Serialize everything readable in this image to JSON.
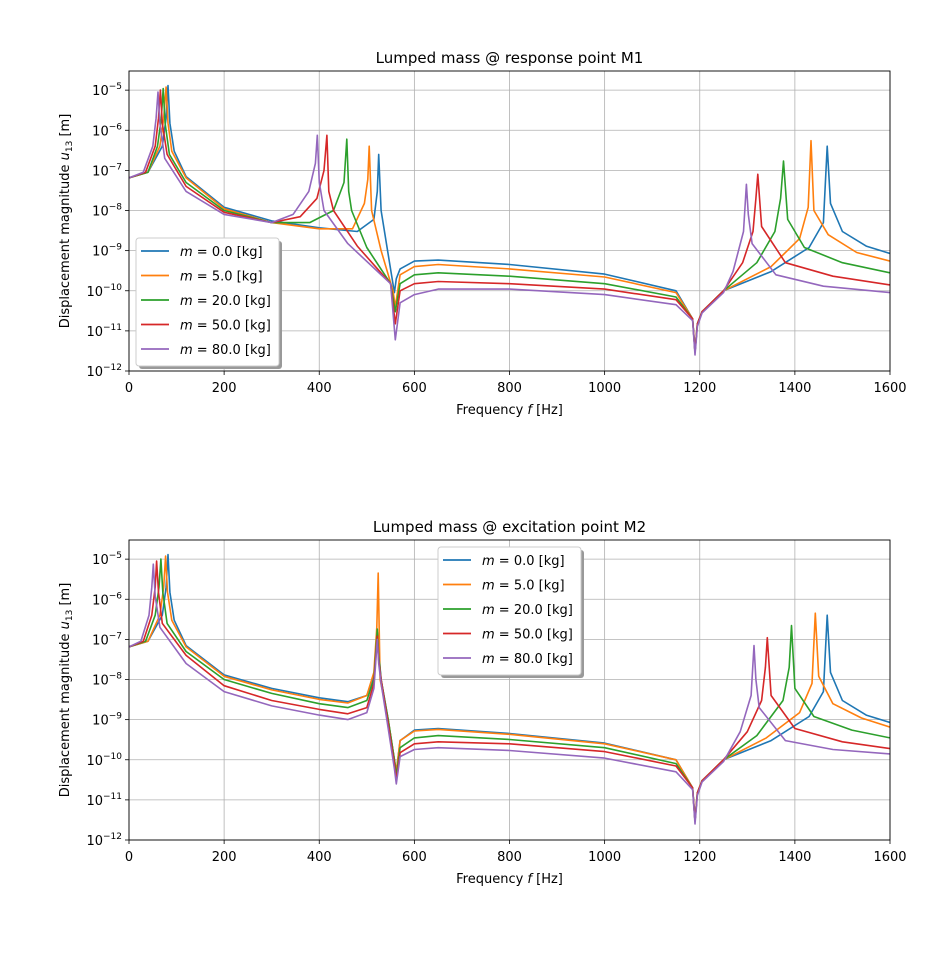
{
  "chart_data": [
    {
      "type": "line",
      "title": "Lumped mass @ response point M1",
      "xlabel": "Frequency f [Hz]",
      "ylabel": "Displacement magnitude u13 [m]",
      "xlim": [
        0,
        1600
      ],
      "ylim": [
        1e-12,
        3e-05
      ],
      "yscale": "log",
      "grid": true,
      "legend": "center-left",
      "xticks": [
        "0",
        "200",
        "400",
        "600",
        "800",
        "1000",
        "1200",
        "1400",
        "1600"
      ],
      "yticks": [
        -12,
        -11,
        -10,
        -9,
        -8,
        -7,
        -6,
        -5
      ],
      "series": [
        {
          "name": "m = 0.0 [kg]",
          "color": "#1f77b4",
          "x": [
            0,
            40,
            70,
            78,
            82,
            86,
            95,
            120,
            200,
            300,
            400,
            480,
            515,
            522,
            525,
            530,
            545,
            558,
            562,
            570,
            600,
            650,
            800,
            1000,
            1150,
            1185,
            1190,
            1195,
            1205,
            1250,
            1350,
            1430,
            1460,
            1468,
            1475,
            1500,
            1550,
            1600
          ],
          "y": [
            6.5e-08,
            9e-08,
            4e-07,
            2e-06,
            1.3e-05,
            1.5e-06,
            3e-07,
            7e-08,
            1.2e-08,
            5.5e-09,
            3.7e-09,
            3e-09,
            6e-09,
            3e-08,
            2.5e-07,
            1e-08,
            8e-10,
            9e-11,
            2e-10,
            3.5e-10,
            5.5e-10,
            5.8e-10,
            4.5e-10,
            2.6e-10,
            1e-10,
            2e-11,
            3e-12,
            1.5e-11,
            3e-11,
            1e-10,
            3e-10,
            1.2e-09,
            5e-09,
            4e-07,
            1.5e-08,
            3e-09,
            1.3e-09,
            8.5e-10
          ]
        },
        {
          "name": "m = 5.0 [kg]",
          "color": "#ff7f0e",
          "x": [
            0,
            40,
            65,
            73,
            78,
            82,
            90,
            120,
            200,
            300,
            400,
            470,
            495,
            502,
            505,
            510,
            530,
            555,
            560,
            570,
            600,
            650,
            800,
            1000,
            1150,
            1185,
            1190,
            1195,
            1205,
            1250,
            1350,
            1410,
            1428,
            1434,
            1440,
            1470,
            1530,
            1600
          ],
          "y": [
            6.5e-08,
            9e-08,
            4e-07,
            2e-06,
            1.2e-05,
            1.5e-06,
            3e-07,
            6.5e-08,
            1.1e-08,
            5e-09,
            3.5e-09,
            3.5e-09,
            1.5e-08,
            6e-08,
            4e-07,
            1e-08,
            1e-09,
            1e-10,
            4e-11,
            2.5e-10,
            4e-10,
            4.5e-10,
            3.5e-10,
            2.2e-10,
            9e-11,
            2e-11,
            3e-12,
            1.5e-11,
            3e-11,
            1e-10,
            4e-10,
            2e-09,
            1.2e-08,
            5.5e-07,
            1e-08,
            2.5e-09,
            9e-10,
            5.5e-10
          ]
        },
        {
          "name": "m = 20.0 [kg]",
          "color": "#2ca02c",
          "x": [
            0,
            40,
            60,
            68,
            72,
            76,
            85,
            120,
            200,
            300,
            380,
            430,
            452,
            458,
            462,
            468,
            500,
            550,
            560,
            570,
            600,
            650,
            800,
            1000,
            1150,
            1185,
            1190,
            1195,
            1205,
            1250,
            1320,
            1358,
            1370,
            1376,
            1385,
            1420,
            1500,
            1600
          ],
          "y": [
            6.5e-08,
            9e-08,
            4e-07,
            2e-06,
            1.1e-05,
            1.5e-06,
            2.5e-07,
            5e-08,
            1e-08,
            5e-09,
            5e-09,
            1e-08,
            5e-08,
            6e-07,
            3e-08,
            1e-08,
            1.2e-09,
            1.5e-10,
            3e-11,
            1.5e-10,
            2.5e-10,
            2.8e-10,
            2.3e-10,
            1.5e-10,
            7e-11,
            2e-11,
            3e-12,
            1.5e-11,
            3e-11,
            1e-10,
            5e-10,
            3e-09,
            2e-08,
            1.7e-07,
            6e-09,
            1.2e-09,
            5e-10,
            2.8e-10
          ]
        },
        {
          "name": "m = 50.0 [kg]",
          "color": "#d62728",
          "x": [
            0,
            35,
            55,
            62,
            66,
            70,
            80,
            120,
            200,
            300,
            360,
            395,
            410,
            416,
            420,
            430,
            480,
            550,
            560,
            570,
            600,
            650,
            800,
            1000,
            1150,
            1185,
            1190,
            1195,
            1205,
            1250,
            1290,
            1312,
            1318,
            1322,
            1330,
            1380,
            1480,
            1600
          ],
          "y": [
            6.5e-08,
            9e-08,
            4e-07,
            2e-06,
            1e-05,
            1.5e-06,
            2.5e-07,
            4e-08,
            9e-09,
            5e-09,
            7e-09,
            2e-08,
            1e-07,
            7.5e-07,
            3e-08,
            1e-08,
            1.3e-09,
            1.5e-10,
            1.5e-11,
            1e-10,
            1.5e-10,
            1.7e-10,
            1.5e-10,
            1.1e-10,
            6e-11,
            2e-11,
            3e-12,
            1.5e-11,
            3e-11,
            1e-10,
            5e-10,
            3e-09,
            2e-08,
            8e-08,
            4e-09,
            5e-10,
            2.3e-10,
            1.4e-10
          ]
        },
        {
          "name": "m = 80.0 [kg]",
          "color": "#9467bd",
          "x": [
            0,
            30,
            50,
            57,
            61,
            65,
            75,
            120,
            200,
            300,
            345,
            378,
            392,
            396,
            400,
            410,
            460,
            550,
            560,
            570,
            600,
            650,
            800,
            1000,
            1150,
            1185,
            1190,
            1195,
            1205,
            1250,
            1270,
            1292,
            1298,
            1302,
            1310,
            1360,
            1460,
            1600
          ],
          "y": [
            6.5e-08,
            9e-08,
            4e-07,
            2e-06,
            9e-06,
            1.5e-06,
            2e-07,
            3e-08,
            8e-09,
            5e-09,
            8e-09,
            3e-08,
            1.5e-07,
            7.5e-07,
            5e-08,
            1e-08,
            1.5e-09,
            1.5e-10,
            6e-12,
            5e-11,
            8e-11,
            1.1e-10,
            1.1e-10,
            8e-11,
            4.5e-11,
            1.8e-11,
            2.5e-12,
            1.3e-11,
            2.8e-11,
            9e-11,
            3e-10,
            3e-09,
            4.5e-08,
            8e-09,
            1.5e-09,
            2.5e-10,
            1.3e-10,
            9e-11
          ]
        }
      ]
    },
    {
      "type": "line",
      "title": "Lumped mass @ excitation point M2",
      "xlabel": "Frequency f [Hz]",
      "ylabel": "Displacement magnitude u13 [m]",
      "xlim": [
        0,
        1600
      ],
      "ylim": [
        1e-12,
        3e-05
      ],
      "yscale": "log",
      "grid": true,
      "legend": "upper-center",
      "xticks": [
        "0",
        "200",
        "400",
        "600",
        "800",
        "1000",
        "1200",
        "1400",
        "1600"
      ],
      "yticks": [
        -12,
        -11,
        -10,
        -9,
        -8,
        -7,
        -6,
        -5
      ],
      "series": [
        {
          "name": "m = 0.0 [kg]",
          "color": "#1f77b4",
          "x": [
            0,
            40,
            70,
            78,
            82,
            86,
            95,
            120,
            200,
            300,
            400,
            460,
            500,
            515,
            522,
            525,
            530,
            545,
            558,
            562,
            570,
            600,
            650,
            800,
            1000,
            1150,
            1185,
            1190,
            1195,
            1205,
            1250,
            1350,
            1430,
            1460,
            1468,
            1475,
            1500,
            1550,
            1600
          ],
          "y": [
            6.5e-08,
            9e-08,
            4e-07,
            2e-06,
            1.3e-05,
            1.5e-06,
            3e-07,
            7e-08,
            1.3e-08,
            6e-09,
            3.5e-09,
            2.8e-09,
            4e-09,
            1.2e-08,
            1.5e-07,
            5e-08,
            1e-08,
            1e-09,
            1e-10,
            5e-11,
            3e-10,
            5.5e-10,
            6e-10,
            4.5e-10,
            2.6e-10,
            1e-10,
            2e-11,
            3e-12,
            1.5e-11,
            3e-11,
            1e-10,
            3e-10,
            1.2e-09,
            5e-09,
            4e-07,
            1.5e-08,
            3e-09,
            1.3e-09,
            8.5e-10
          ]
        },
        {
          "name": "m = 5.0 [kg]",
          "color": "#ff7f0e",
          "x": [
            0,
            40,
            65,
            73,
            77,
            81,
            90,
            120,
            200,
            300,
            400,
            460,
            500,
            515,
            521,
            524,
            528,
            545,
            558,
            562,
            570,
            600,
            650,
            800,
            1000,
            1150,
            1185,
            1190,
            1195,
            1205,
            1250,
            1340,
            1410,
            1436,
            1443,
            1450,
            1480,
            1540,
            1600
          ],
          "y": [
            6.5e-08,
            9e-08,
            4e-07,
            2e-06,
            1.2e-05,
            1.5e-06,
            3e-07,
            6.5e-08,
            1.2e-08,
            5.5e-09,
            3.2e-09,
            2.6e-09,
            4e-09,
            1.5e-08,
            2e-07,
            4.5e-06,
            1e-08,
            1e-09,
            1e-10,
            5e-11,
            3e-10,
            5.2e-10,
            5.7e-10,
            4.3e-10,
            2.5e-10,
            1e-10,
            2e-11,
            3e-12,
            1.5e-11,
            3e-11,
            1e-10,
            3.5e-10,
            1.5e-09,
            8e-09,
            4.5e-07,
            1.2e-08,
            2.5e-09,
            1.1e-09,
            6.5e-10
          ]
        },
        {
          "name": "m = 20.0 [kg]",
          "color": "#2ca02c",
          "x": [
            0,
            35,
            55,
            63,
            67,
            71,
            80,
            120,
            200,
            300,
            400,
            460,
            500,
            515,
            522,
            525,
            530,
            545,
            558,
            562,
            570,
            600,
            650,
            800,
            1000,
            1150,
            1185,
            1190,
            1195,
            1205,
            1250,
            1320,
            1375,
            1388,
            1393,
            1400,
            1440,
            1520,
            1600
          ],
          "y": [
            6.5e-08,
            9e-08,
            4e-07,
            2e-06,
            1e-05,
            1.5e-06,
            2.5e-07,
            5e-08,
            1e-08,
            4.5e-09,
            2.5e-09,
            2e-09,
            3e-09,
            1e-08,
            1.8e-07,
            4e-08,
            1e-08,
            1e-09,
            1e-10,
            4e-11,
            2e-10,
            3.5e-10,
            4e-10,
            3.2e-10,
            2e-10,
            8e-11,
            2e-11,
            3e-12,
            1.5e-11,
            3e-11,
            1e-10,
            4e-10,
            3e-09,
            2e-08,
            2.2e-07,
            6e-09,
            1.2e-09,
            5.5e-10,
            3.5e-10
          ]
        },
        {
          "name": "m = 50.0 [kg]",
          "color": "#d62728",
          "x": [
            0,
            30,
            48,
            55,
            58,
            62,
            70,
            120,
            200,
            300,
            400,
            460,
            500,
            515,
            522,
            525,
            530,
            545,
            558,
            562,
            570,
            600,
            650,
            800,
            1000,
            1150,
            1185,
            1190,
            1195,
            1205,
            1250,
            1300,
            1330,
            1338,
            1342,
            1350,
            1400,
            1500,
            1600
          ],
          "y": [
            6.5e-08,
            9e-08,
            4e-07,
            2e-06,
            9e-06,
            1.5e-06,
            2.5e-07,
            4e-08,
            7e-09,
            3e-09,
            1.8e-09,
            1.4e-09,
            2e-09,
            8e-09,
            1.2e-07,
            3e-08,
            1e-08,
            8e-10,
            8e-11,
            3e-11,
            1.5e-10,
            2.5e-10,
            2.8e-10,
            2.5e-10,
            1.6e-10,
            7e-11,
            2e-11,
            3e-12,
            1.5e-11,
            3e-11,
            1e-10,
            5e-10,
            3e-09,
            2e-08,
            1.1e-07,
            4e-09,
            6e-10,
            2.8e-10,
            1.9e-10
          ]
        },
        {
          "name": "m = 80.0 [kg]",
          "color": "#9467bd",
          "x": [
            0,
            25,
            42,
            48,
            51,
            55,
            65,
            120,
            200,
            300,
            400,
            460,
            500,
            515,
            522,
            525,
            530,
            545,
            558,
            562,
            570,
            600,
            650,
            800,
            1000,
            1150,
            1185,
            1190,
            1195,
            1205,
            1250,
            1285,
            1308,
            1314,
            1318,
            1325,
            1380,
            1480,
            1600
          ],
          "y": [
            6.5e-08,
            9e-08,
            4e-07,
            2e-06,
            7.5e-06,
            1.2e-06,
            2e-07,
            2.5e-08,
            5e-09,
            2.2e-09,
            1.3e-09,
            1e-09,
            1.5e-09,
            6e-09,
            1e-07,
            2.5e-08,
            8e-09,
            6e-10,
            6e-11,
            2.5e-11,
            1.2e-10,
            1.8e-10,
            2e-10,
            1.7e-10,
            1.1e-10,
            5e-11,
            1.8e-11,
            2.5e-12,
            1.3e-11,
            2.8e-11,
            9e-11,
            5e-10,
            4e-09,
            7e-08,
            1e-08,
            2e-09,
            3e-10,
            1.8e-10,
            1.4e-10
          ]
        }
      ]
    }
  ]
}
